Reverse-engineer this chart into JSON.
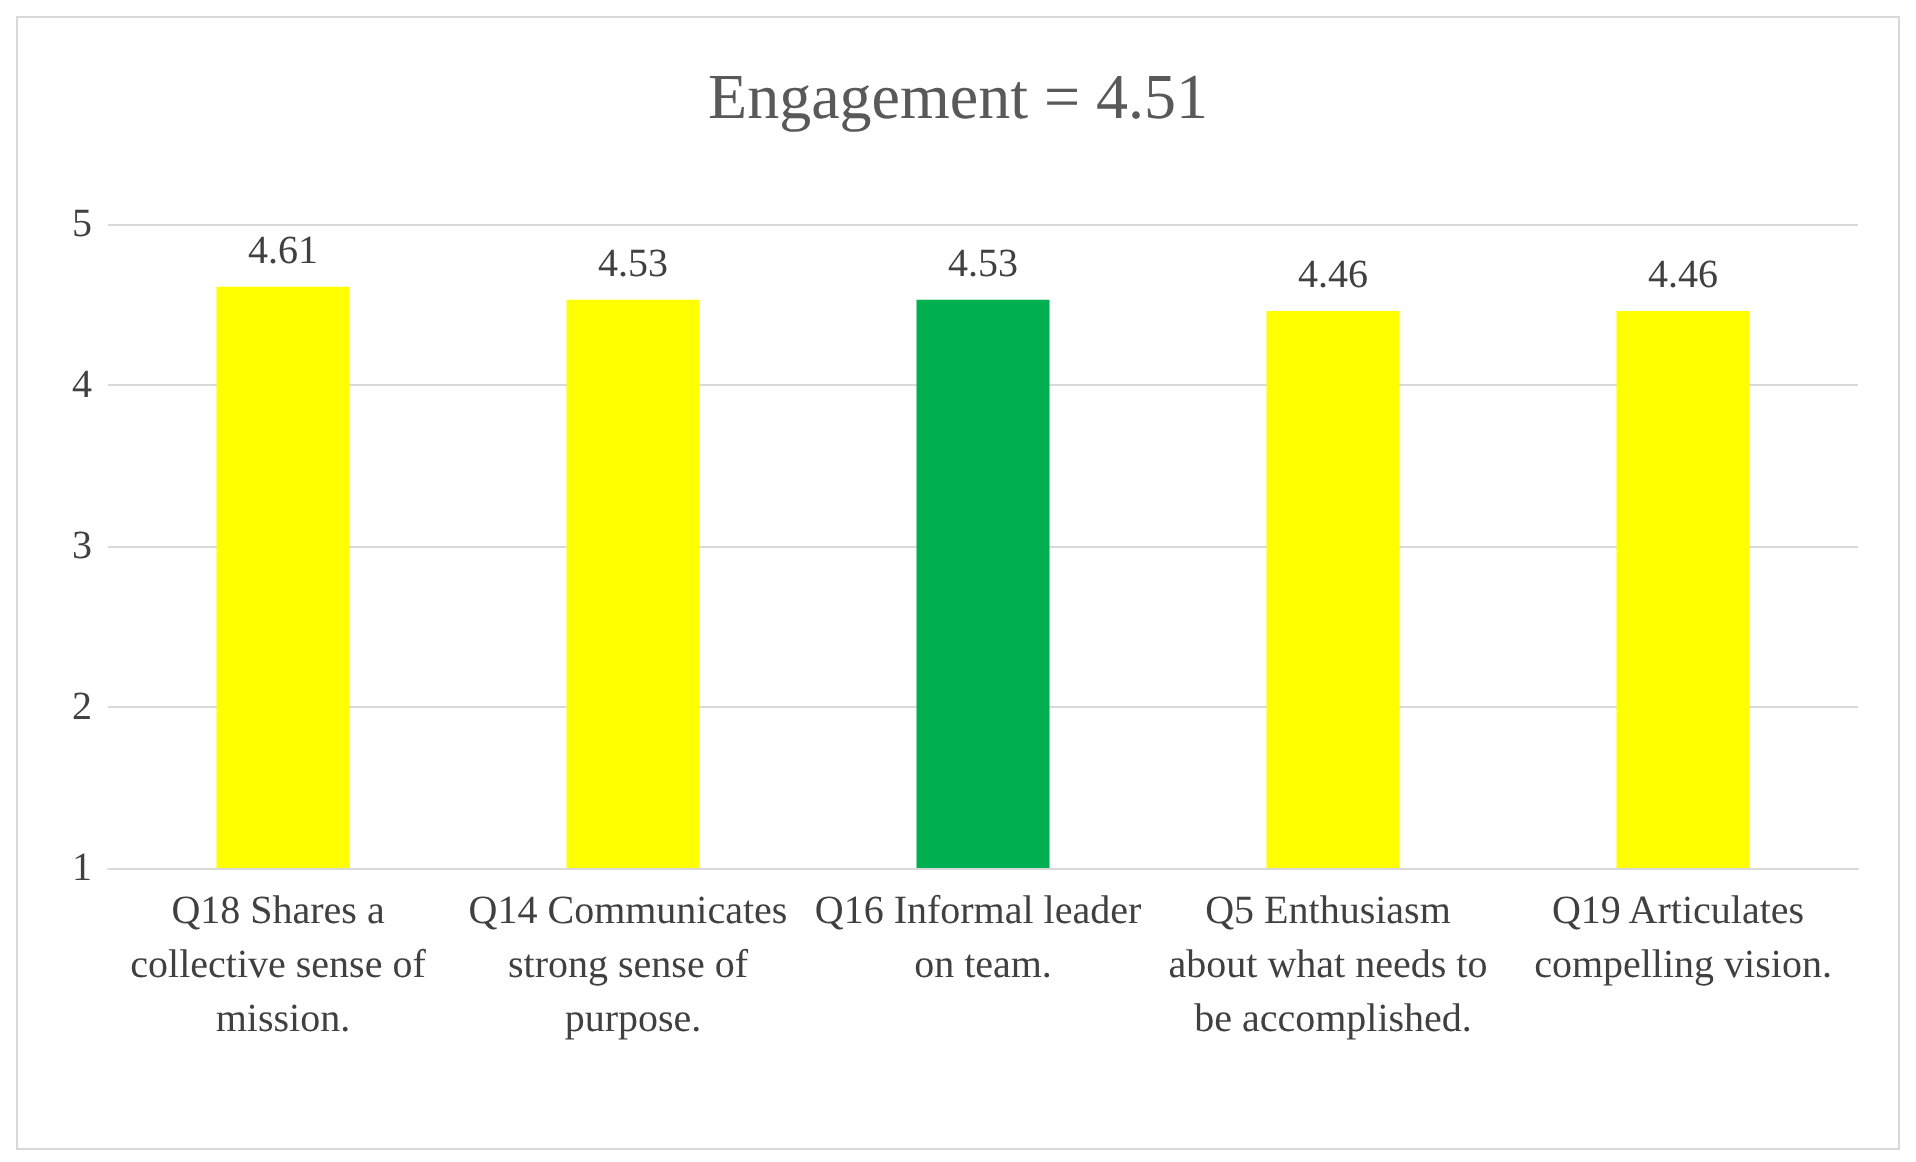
{
  "chart_data": {
    "type": "bar",
    "title": "Engagement = 4.51",
    "categories": [
      "Q18 Shares a collective sense of mission.",
      "Q14 Communicates strong sense of purpose.",
      "Q16 Informal leader on team.",
      "Q5 Enthusiasm about what needs to be accomplished.",
      "Q19 Articulates compelling vision."
    ],
    "values": [
      4.61,
      4.53,
      4.53,
      4.46,
      4.46
    ],
    "colors": [
      "#ffff00",
      "#ffff00",
      "#00b050",
      "#ffff00",
      "#ffff00"
    ],
    "ylim": [
      1,
      5
    ],
    "yticks": [
      1,
      2,
      3,
      4,
      5
    ],
    "grid": "y",
    "data_labels": true
  }
}
